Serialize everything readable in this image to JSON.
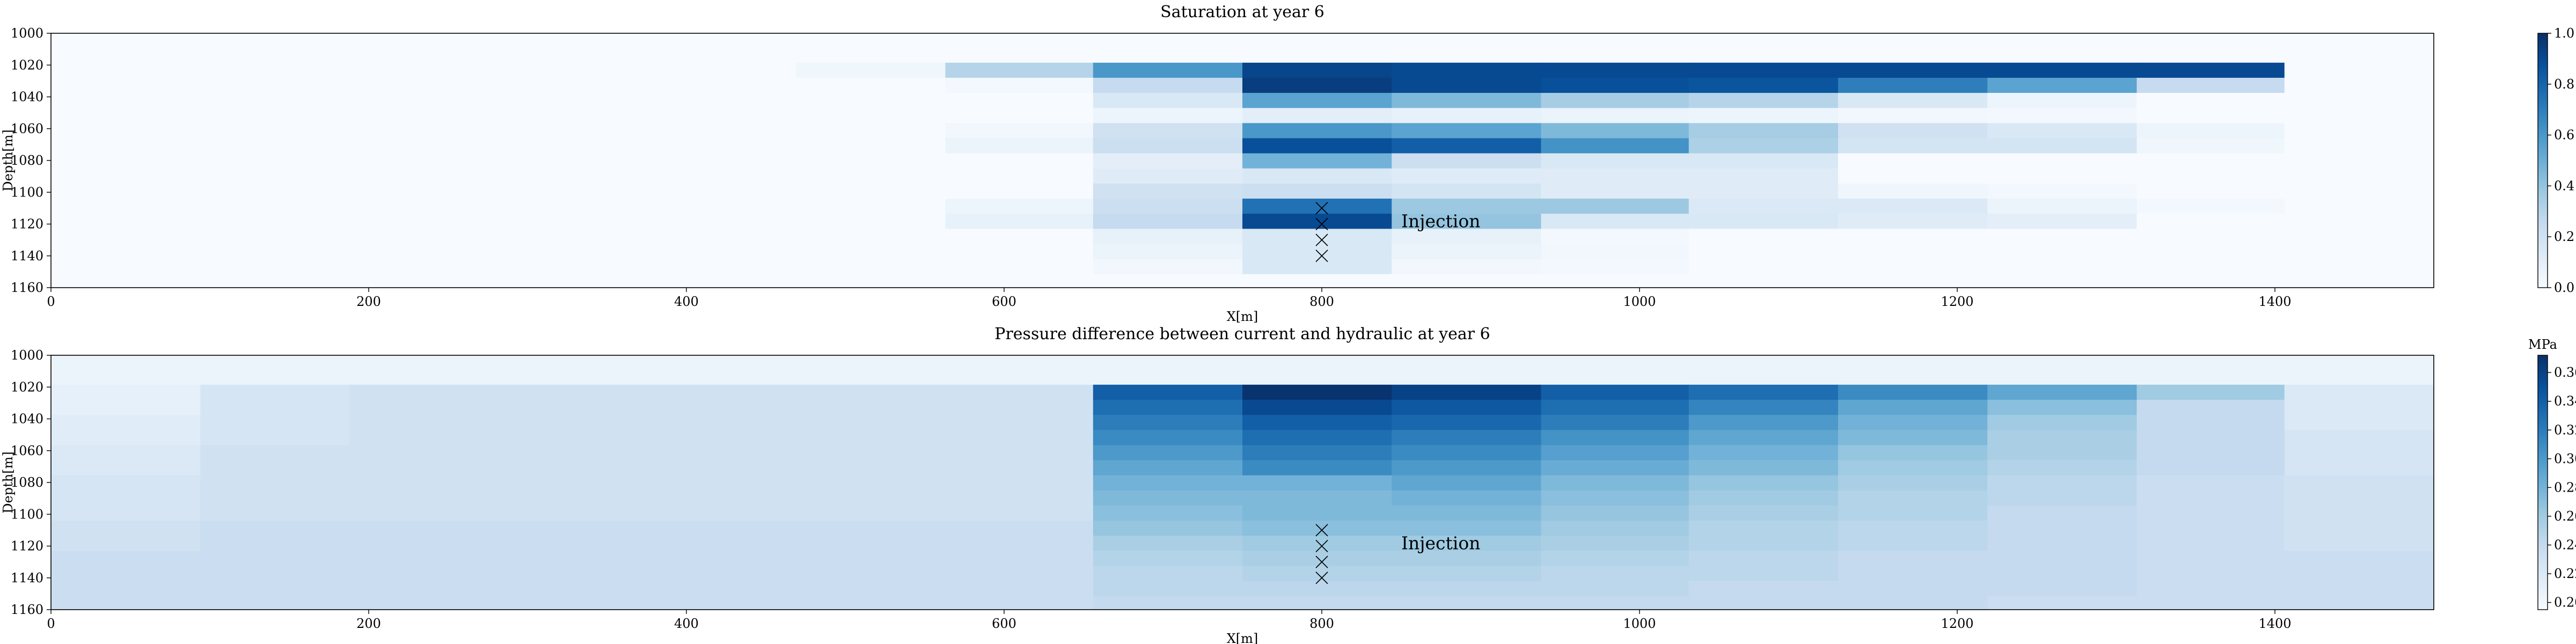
{
  "chart_data": [
    {
      "type": "heatmap",
      "title": "Saturation at year 6",
      "xlabel": "X[m]",
      "ylabel": "Depth[m]",
      "xlim": [
        0,
        1500
      ],
      "ylim": [
        1000,
        1160
      ],
      "y_inverted": true,
      "xticks": [
        "0",
        "200",
        "400",
        "600",
        "800",
        "1000",
        "1200",
        "1400"
      ],
      "yticks": [
        "1000",
        "1020",
        "1040",
        "1060",
        "1080",
        "1100",
        "1120",
        "1140",
        "1160"
      ],
      "x_edges": [
        0,
        94,
        188,
        281,
        375,
        469,
        563,
        656,
        750,
        844,
        938,
        1031,
        1125,
        1219,
        1313,
        1406,
        1500
      ],
      "y_edges": [
        1000,
        1018.5,
        1028,
        1037.5,
        1047,
        1056.5,
        1066,
        1075.5,
        1085,
        1094.5,
        1104,
        1113.5,
        1123,
        1132.5,
        1142,
        1151.5,
        1160
      ],
      "values": [
        [
          0,
          0,
          0,
          0,
          0,
          0,
          0,
          0,
          0,
          0,
          0,
          0,
          0,
          0,
          0,
          0
        ],
        [
          0,
          0,
          0,
          0,
          0,
          0.04,
          0.3,
          0.6,
          0.92,
          0.9,
          0.9,
          0.9,
          0.9,
          0.9,
          0.9,
          0
        ],
        [
          0,
          0,
          0,
          0,
          0,
          0,
          0.02,
          0.25,
          0.95,
          0.9,
          0.88,
          0.86,
          0.7,
          0.55,
          0.25,
          0
        ],
        [
          0,
          0,
          0,
          0,
          0,
          0,
          0,
          0.15,
          0.55,
          0.45,
          0.35,
          0.3,
          0.15,
          0.05,
          0,
          0
        ],
        [
          0,
          0,
          0,
          0,
          0,
          0,
          0,
          0.05,
          0.1,
          0.08,
          0.06,
          0.05,
          0.03,
          0.02,
          0,
          0
        ],
        [
          0,
          0,
          0,
          0,
          0,
          0,
          0.03,
          0.2,
          0.6,
          0.55,
          0.45,
          0.35,
          0.2,
          0.15,
          0.05,
          0
        ],
        [
          0,
          0,
          0,
          0,
          0,
          0,
          0.06,
          0.22,
          0.88,
          0.82,
          0.62,
          0.33,
          0.18,
          0.18,
          0.04,
          0
        ],
        [
          0,
          0,
          0,
          0,
          0,
          0,
          0,
          0.1,
          0.48,
          0.22,
          0.15,
          0.15,
          0,
          0,
          0,
          0
        ],
        [
          0,
          0,
          0,
          0,
          0,
          0,
          0,
          0.12,
          0.15,
          0.12,
          0.12,
          0.12,
          0,
          0,
          0,
          0
        ],
        [
          0,
          0,
          0,
          0,
          0,
          0,
          0,
          0.2,
          0.22,
          0.18,
          0.12,
          0.12,
          0.04,
          0.02,
          0,
          0
        ],
        [
          0,
          0,
          0,
          0,
          0,
          0,
          0.05,
          0.22,
          0.75,
          0.38,
          0.38,
          0.14,
          0.14,
          0.06,
          0.02,
          0
        ],
        [
          0,
          0,
          0,
          0,
          0,
          0,
          0.08,
          0.25,
          0.9,
          0.4,
          0.15,
          0.15,
          0.12,
          0.1,
          0,
          0
        ],
        [
          0,
          0,
          0,
          0,
          0,
          0,
          0,
          0.08,
          0.15,
          0.08,
          0.02,
          0,
          0,
          0,
          0,
          0
        ],
        [
          0,
          0,
          0,
          0,
          0,
          0,
          0,
          0.06,
          0.15,
          0.06,
          0.03,
          0,
          0,
          0,
          0,
          0
        ],
        [
          0,
          0,
          0,
          0,
          0,
          0,
          0,
          0.03,
          0.15,
          0.03,
          0.02,
          0,
          0,
          0,
          0,
          0
        ],
        [
          0,
          0,
          0,
          0,
          0,
          0,
          0,
          0,
          0,
          0,
          0,
          0,
          0,
          0,
          0,
          0
        ]
      ],
      "vmin": 0,
      "vmax": 1.0,
      "colormap": "Blues",
      "colorbar_ticks": [
        "0.0",
        "0.2",
        "0.4",
        "0.6",
        "0.8",
        "1.0"
      ],
      "colorbar_unit": "",
      "markers": [
        {
          "x": 800,
          "y": 1110
        },
        {
          "x": 800,
          "y": 1120
        },
        {
          "x": 800,
          "y": 1130
        },
        {
          "x": 800,
          "y": 1140
        }
      ],
      "annotation": {
        "text": "Injection",
        "x": 850,
        "y": 1120
      }
    },
    {
      "type": "heatmap",
      "title": "Pressure difference between current and hydraulic at year 6",
      "xlabel": "X[m]",
      "ylabel": "Depth[m]",
      "xlim": [
        0,
        1500
      ],
      "ylim": [
        1000,
        1160
      ],
      "y_inverted": true,
      "xticks": [
        "0",
        "200",
        "400",
        "600",
        "800",
        "1000",
        "1200",
        "1400"
      ],
      "yticks": [
        "1000",
        "1020",
        "1040",
        "1060",
        "1080",
        "1100",
        "1120",
        "1140",
        "1160"
      ],
      "x_edges": [
        0,
        94,
        188,
        281,
        375,
        469,
        563,
        656,
        750,
        844,
        938,
        1031,
        1125,
        1219,
        1313,
        1406,
        1500
      ],
      "y_edges": [
        1000,
        1018.5,
        1028,
        1037.5,
        1047,
        1056.5,
        1066,
        1075.5,
        1085,
        1094.5,
        1104,
        1113.5,
        1123,
        1132.5,
        1142,
        1151.5,
        1160
      ],
      "values": [
        [
          0.205,
          0.205,
          0.205,
          0.205,
          0.205,
          0.205,
          0.205,
          0.205,
          0.205,
          0.205,
          0.205,
          0.205,
          0.205,
          0.205,
          0.205,
          0.205
        ],
        [
          0.21,
          0.225,
          0.23,
          0.23,
          0.23,
          0.23,
          0.23,
          0.34,
          0.37,
          0.36,
          0.34,
          0.33,
          0.31,
          0.29,
          0.26,
          0.22
        ],
        [
          0.21,
          0.225,
          0.23,
          0.23,
          0.23,
          0.23,
          0.23,
          0.33,
          0.355,
          0.345,
          0.33,
          0.315,
          0.29,
          0.27,
          0.24,
          0.22
        ],
        [
          0.215,
          0.225,
          0.23,
          0.23,
          0.23,
          0.23,
          0.23,
          0.32,
          0.34,
          0.335,
          0.32,
          0.3,
          0.28,
          0.26,
          0.24,
          0.22
        ],
        [
          0.215,
          0.225,
          0.23,
          0.23,
          0.23,
          0.23,
          0.23,
          0.31,
          0.33,
          0.32,
          0.305,
          0.29,
          0.275,
          0.255,
          0.24,
          0.225
        ],
        [
          0.22,
          0.23,
          0.23,
          0.23,
          0.23,
          0.23,
          0.23,
          0.3,
          0.32,
          0.31,
          0.295,
          0.28,
          0.265,
          0.255,
          0.24,
          0.225
        ],
        [
          0.22,
          0.23,
          0.23,
          0.23,
          0.23,
          0.23,
          0.23,
          0.29,
          0.31,
          0.3,
          0.285,
          0.275,
          0.26,
          0.25,
          0.24,
          0.225
        ],
        [
          0.225,
          0.23,
          0.23,
          0.23,
          0.23,
          0.23,
          0.23,
          0.28,
          0.28,
          0.29,
          0.275,
          0.265,
          0.255,
          0.245,
          0.235,
          0.23
        ],
        [
          0.225,
          0.23,
          0.23,
          0.23,
          0.23,
          0.23,
          0.23,
          0.275,
          0.275,
          0.28,
          0.27,
          0.26,
          0.25,
          0.245,
          0.235,
          0.23
        ],
        [
          0.225,
          0.23,
          0.23,
          0.23,
          0.23,
          0.23,
          0.23,
          0.27,
          0.275,
          0.275,
          0.265,
          0.255,
          0.25,
          0.24,
          0.235,
          0.23
        ],
        [
          0.23,
          0.235,
          0.235,
          0.235,
          0.235,
          0.235,
          0.235,
          0.265,
          0.27,
          0.27,
          0.26,
          0.25,
          0.245,
          0.24,
          0.235,
          0.23
        ],
        [
          0.23,
          0.235,
          0.235,
          0.235,
          0.235,
          0.235,
          0.235,
          0.255,
          0.26,
          0.26,
          0.255,
          0.25,
          0.245,
          0.24,
          0.235,
          0.23
        ],
        [
          0.235,
          0.235,
          0.235,
          0.235,
          0.235,
          0.235,
          0.235,
          0.25,
          0.255,
          0.255,
          0.25,
          0.245,
          0.24,
          0.24,
          0.235,
          0.235
        ],
        [
          0.235,
          0.235,
          0.235,
          0.235,
          0.235,
          0.235,
          0.235,
          0.245,
          0.25,
          0.25,
          0.245,
          0.245,
          0.24,
          0.24,
          0.235,
          0.235
        ],
        [
          0.235,
          0.235,
          0.235,
          0.235,
          0.235,
          0.235,
          0.235,
          0.245,
          0.245,
          0.245,
          0.245,
          0.24,
          0.24,
          0.24,
          0.235,
          0.235
        ],
        [
          0.235,
          0.235,
          0.235,
          0.235,
          0.235,
          0.235,
          0.235,
          0.24,
          0.24,
          0.24,
          0.24,
          0.24,
          0.24,
          0.235,
          0.235,
          0.235
        ]
      ],
      "vmin": 0.195,
      "vmax": 0.372,
      "colormap": "Blues",
      "colorbar_ticks": [
        "0.20",
        "0.22",
        "0.24",
        "0.26",
        "0.28",
        "0.30",
        "0.32",
        "0.34",
        "0.36"
      ],
      "colorbar_unit": "MPa",
      "markers": [
        {
          "x": 800,
          "y": 1110
        },
        {
          "x": 800,
          "y": 1120
        },
        {
          "x": 800,
          "y": 1130
        },
        {
          "x": 800,
          "y": 1140
        }
      ],
      "annotation": {
        "text": "Injection",
        "x": 850,
        "y": 1120
      }
    }
  ]
}
